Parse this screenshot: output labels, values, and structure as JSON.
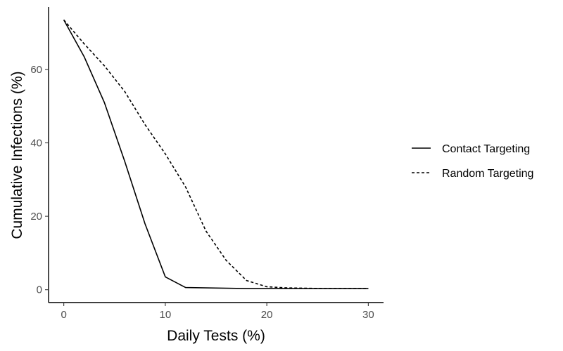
{
  "chart_data": {
    "type": "line",
    "xlabel": "Daily Tests (%)",
    "ylabel": "Cumulative Infections (%)",
    "xlim": [
      -1.5,
      31.5
    ],
    "ylim": [
      -3.5,
      77
    ],
    "xticks": [
      0,
      10,
      20,
      30
    ],
    "yticks": [
      0,
      20,
      40,
      60
    ],
    "grid": false,
    "legend_position": "right",
    "series": [
      {
        "name": "Contact Targeting",
        "line_style": "solid",
        "color": "#000000",
        "x": [
          0,
          2,
          4,
          6,
          8,
          10,
          12,
          14,
          16,
          18,
          20,
          22,
          24,
          26,
          28,
          30
        ],
        "y": [
          73.5,
          63.5,
          51,
          35,
          18,
          3.5,
          0.6,
          0.5,
          0.4,
          0.3,
          0.3,
          0.3,
          0.3,
          0.3,
          0.3,
          0.3
        ]
      },
      {
        "name": "Random Targeting",
        "line_style": "dashed",
        "color": "#000000",
        "x": [
          0,
          2,
          4,
          6,
          8,
          10,
          12,
          14,
          16,
          18,
          20,
          22,
          24,
          26,
          28,
          30
        ],
        "y": [
          73.5,
          67,
          61,
          54,
          45,
          37,
          28,
          16,
          8,
          2.5,
          0.8,
          0.5,
          0.4,
          0.3,
          0.3,
          0.3
        ]
      }
    ]
  }
}
